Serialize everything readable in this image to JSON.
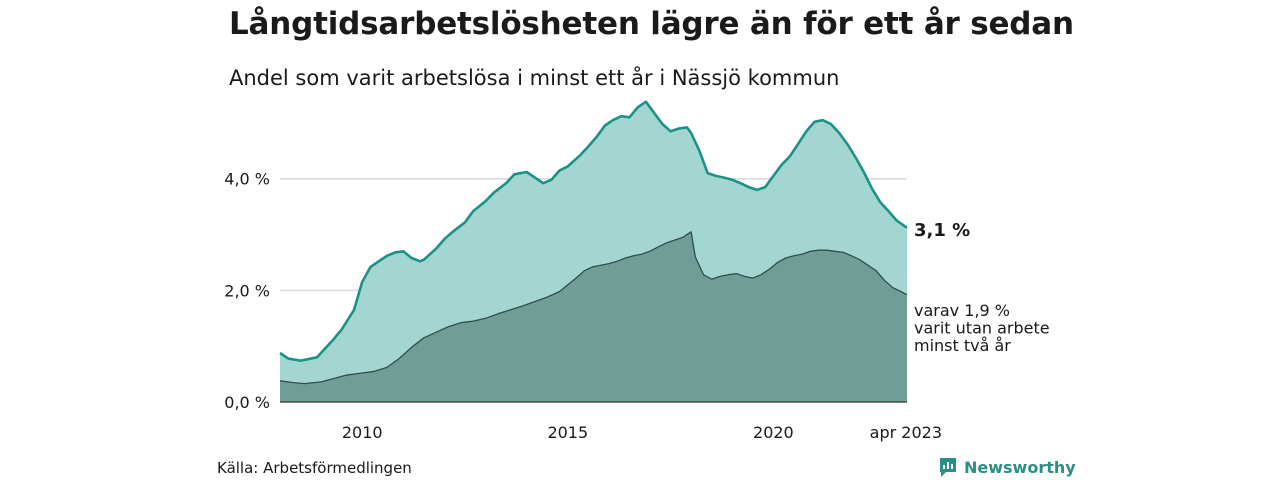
{
  "header": {
    "title": "Långtidsarbetslösheten lägre än för ett år sedan",
    "subtitle": "Andel som varit arbetslösa i minst ett år i Nässjö kommun"
  },
  "footer": {
    "source": "Källa: Arbetsförmedlingen",
    "brand": "Newsworthy"
  },
  "colors": {
    "total_line": "#1a9385",
    "total_fill": "#a3d6d0",
    "sub_line": "#2f4f4b",
    "sub_fill": "#6f9e97",
    "grid": "#d9d9d9"
  },
  "chart_data": {
    "type": "area",
    "title": "Långtidsarbetslösheten lägre än för ett år sedan",
    "subtitle": "Andel som varit arbetslösa i minst ett år i Nässjö kommun",
    "x_range": [
      2008.0,
      2023.25
    ],
    "ylim": [
      0,
      5.5
    ],
    "y_ticks": [
      0,
      2,
      4
    ],
    "y_tick_labels": [
      "0,0 %",
      "2,0 %",
      "4,0 %"
    ],
    "x_ticks": [
      2010,
      2015,
      2020,
      2023.25
    ],
    "x_tick_labels": [
      "2010",
      "2015",
      "2020",
      "apr 2023"
    ],
    "grid": true,
    "series": [
      {
        "x": [
          2008.0,
          2008.2,
          2008.5,
          2008.9,
          2009.1,
          2009.3,
          2009.5,
          2009.8,
          2010.0,
          2010.2,
          2010.4,
          2010.6,
          2010.8,
          2011.0,
          2011.2,
          2011.4,
          2011.5,
          2011.8,
          2012.0,
          2012.2,
          2012.5,
          2012.7,
          2013.0,
          2013.2,
          2013.5,
          2013.7,
          2014.0,
          2014.2,
          2014.4,
          2014.6,
          2014.8,
          2015.0,
          2015.3,
          2015.5,
          2015.7,
          2015.9,
          2016.1,
          2016.3,
          2016.5,
          2016.7,
          2016.9,
          2017.1,
          2017.3,
          2017.5,
          2017.7,
          2017.9,
          2018.0,
          2018.2,
          2018.4,
          2018.6,
          2018.8,
          2019.0,
          2019.2,
          2019.4,
          2019.6,
          2019.8,
          2020.0,
          2020.2,
          2020.4,
          2020.6,
          2020.8,
          2021.0,
          2021.2,
          2021.4,
          2021.6,
          2021.8,
          2022.0,
          2022.2,
          2022.4,
          2022.6,
          2022.8,
          2023.0,
          2023.25
        ],
        "values": [
          0.88,
          0.78,
          0.74,
          0.8,
          0.96,
          1.12,
          1.3,
          1.65,
          2.15,
          2.42,
          2.52,
          2.62,
          2.68,
          2.7,
          2.58,
          2.52,
          2.55,
          2.75,
          2.92,
          3.05,
          3.22,
          3.42,
          3.6,
          3.75,
          3.92,
          4.08,
          4.12,
          4.02,
          3.92,
          3.98,
          4.15,
          4.22,
          4.42,
          4.58,
          4.75,
          4.95,
          5.05,
          5.12,
          5.1,
          5.28,
          5.38,
          5.18,
          4.98,
          4.85,
          4.9,
          4.92,
          4.82,
          4.5,
          4.1,
          4.05,
          4.02,
          3.98,
          3.92,
          3.85,
          3.8,
          3.85,
          4.05,
          4.25,
          4.4,
          4.62,
          4.85,
          5.02,
          5.05,
          4.98,
          4.82,
          4.62,
          4.38,
          4.12,
          3.82,
          3.58,
          3.42,
          3.25,
          3.12
        ],
        "end_label": "3,1 %"
      },
      {
        "x": [
          2008.0,
          2008.3,
          2008.6,
          2009.0,
          2009.3,
          2009.6,
          2010.0,
          2010.3,
          2010.6,
          2010.9,
          2011.2,
          2011.5,
          2011.8,
          2012.1,
          2012.4,
          2012.7,
          2013.0,
          2013.3,
          2013.6,
          2013.9,
          2014.2,
          2014.5,
          2014.8,
          2015.0,
          2015.2,
          2015.4,
          2015.6,
          2015.8,
          2016.0,
          2016.2,
          2016.4,
          2016.6,
          2016.8,
          2017.0,
          2017.2,
          2017.4,
          2017.6,
          2017.8,
          2018.0,
          2018.1,
          2018.3,
          2018.5,
          2018.7,
          2018.9,
          2019.1,
          2019.3,
          2019.5,
          2019.7,
          2019.9,
          2020.1,
          2020.3,
          2020.5,
          2020.7,
          2020.9,
          2021.1,
          2021.3,
          2021.5,
          2021.7,
          2021.9,
          2022.1,
          2022.3,
          2022.5,
          2022.7,
          2022.9,
          2023.1,
          2023.25
        ],
        "values": [
          0.38,
          0.35,
          0.33,
          0.36,
          0.42,
          0.48,
          0.52,
          0.55,
          0.62,
          0.78,
          0.98,
          1.15,
          1.25,
          1.35,
          1.42,
          1.45,
          1.5,
          1.58,
          1.65,
          1.72,
          1.8,
          1.88,
          1.98,
          2.1,
          2.22,
          2.35,
          2.42,
          2.45,
          2.48,
          2.52,
          2.58,
          2.62,
          2.65,
          2.7,
          2.78,
          2.85,
          2.9,
          2.95,
          3.05,
          2.6,
          2.28,
          2.2,
          2.25,
          2.28,
          2.3,
          2.25,
          2.22,
          2.28,
          2.38,
          2.5,
          2.58,
          2.62,
          2.65,
          2.7,
          2.72,
          2.72,
          2.7,
          2.68,
          2.62,
          2.55,
          2.45,
          2.35,
          2.18,
          2.05,
          1.98,
          1.92
        ],
        "end_label": "varav 1,9 %\nvarit utan arbete\nminst två år"
      }
    ]
  }
}
